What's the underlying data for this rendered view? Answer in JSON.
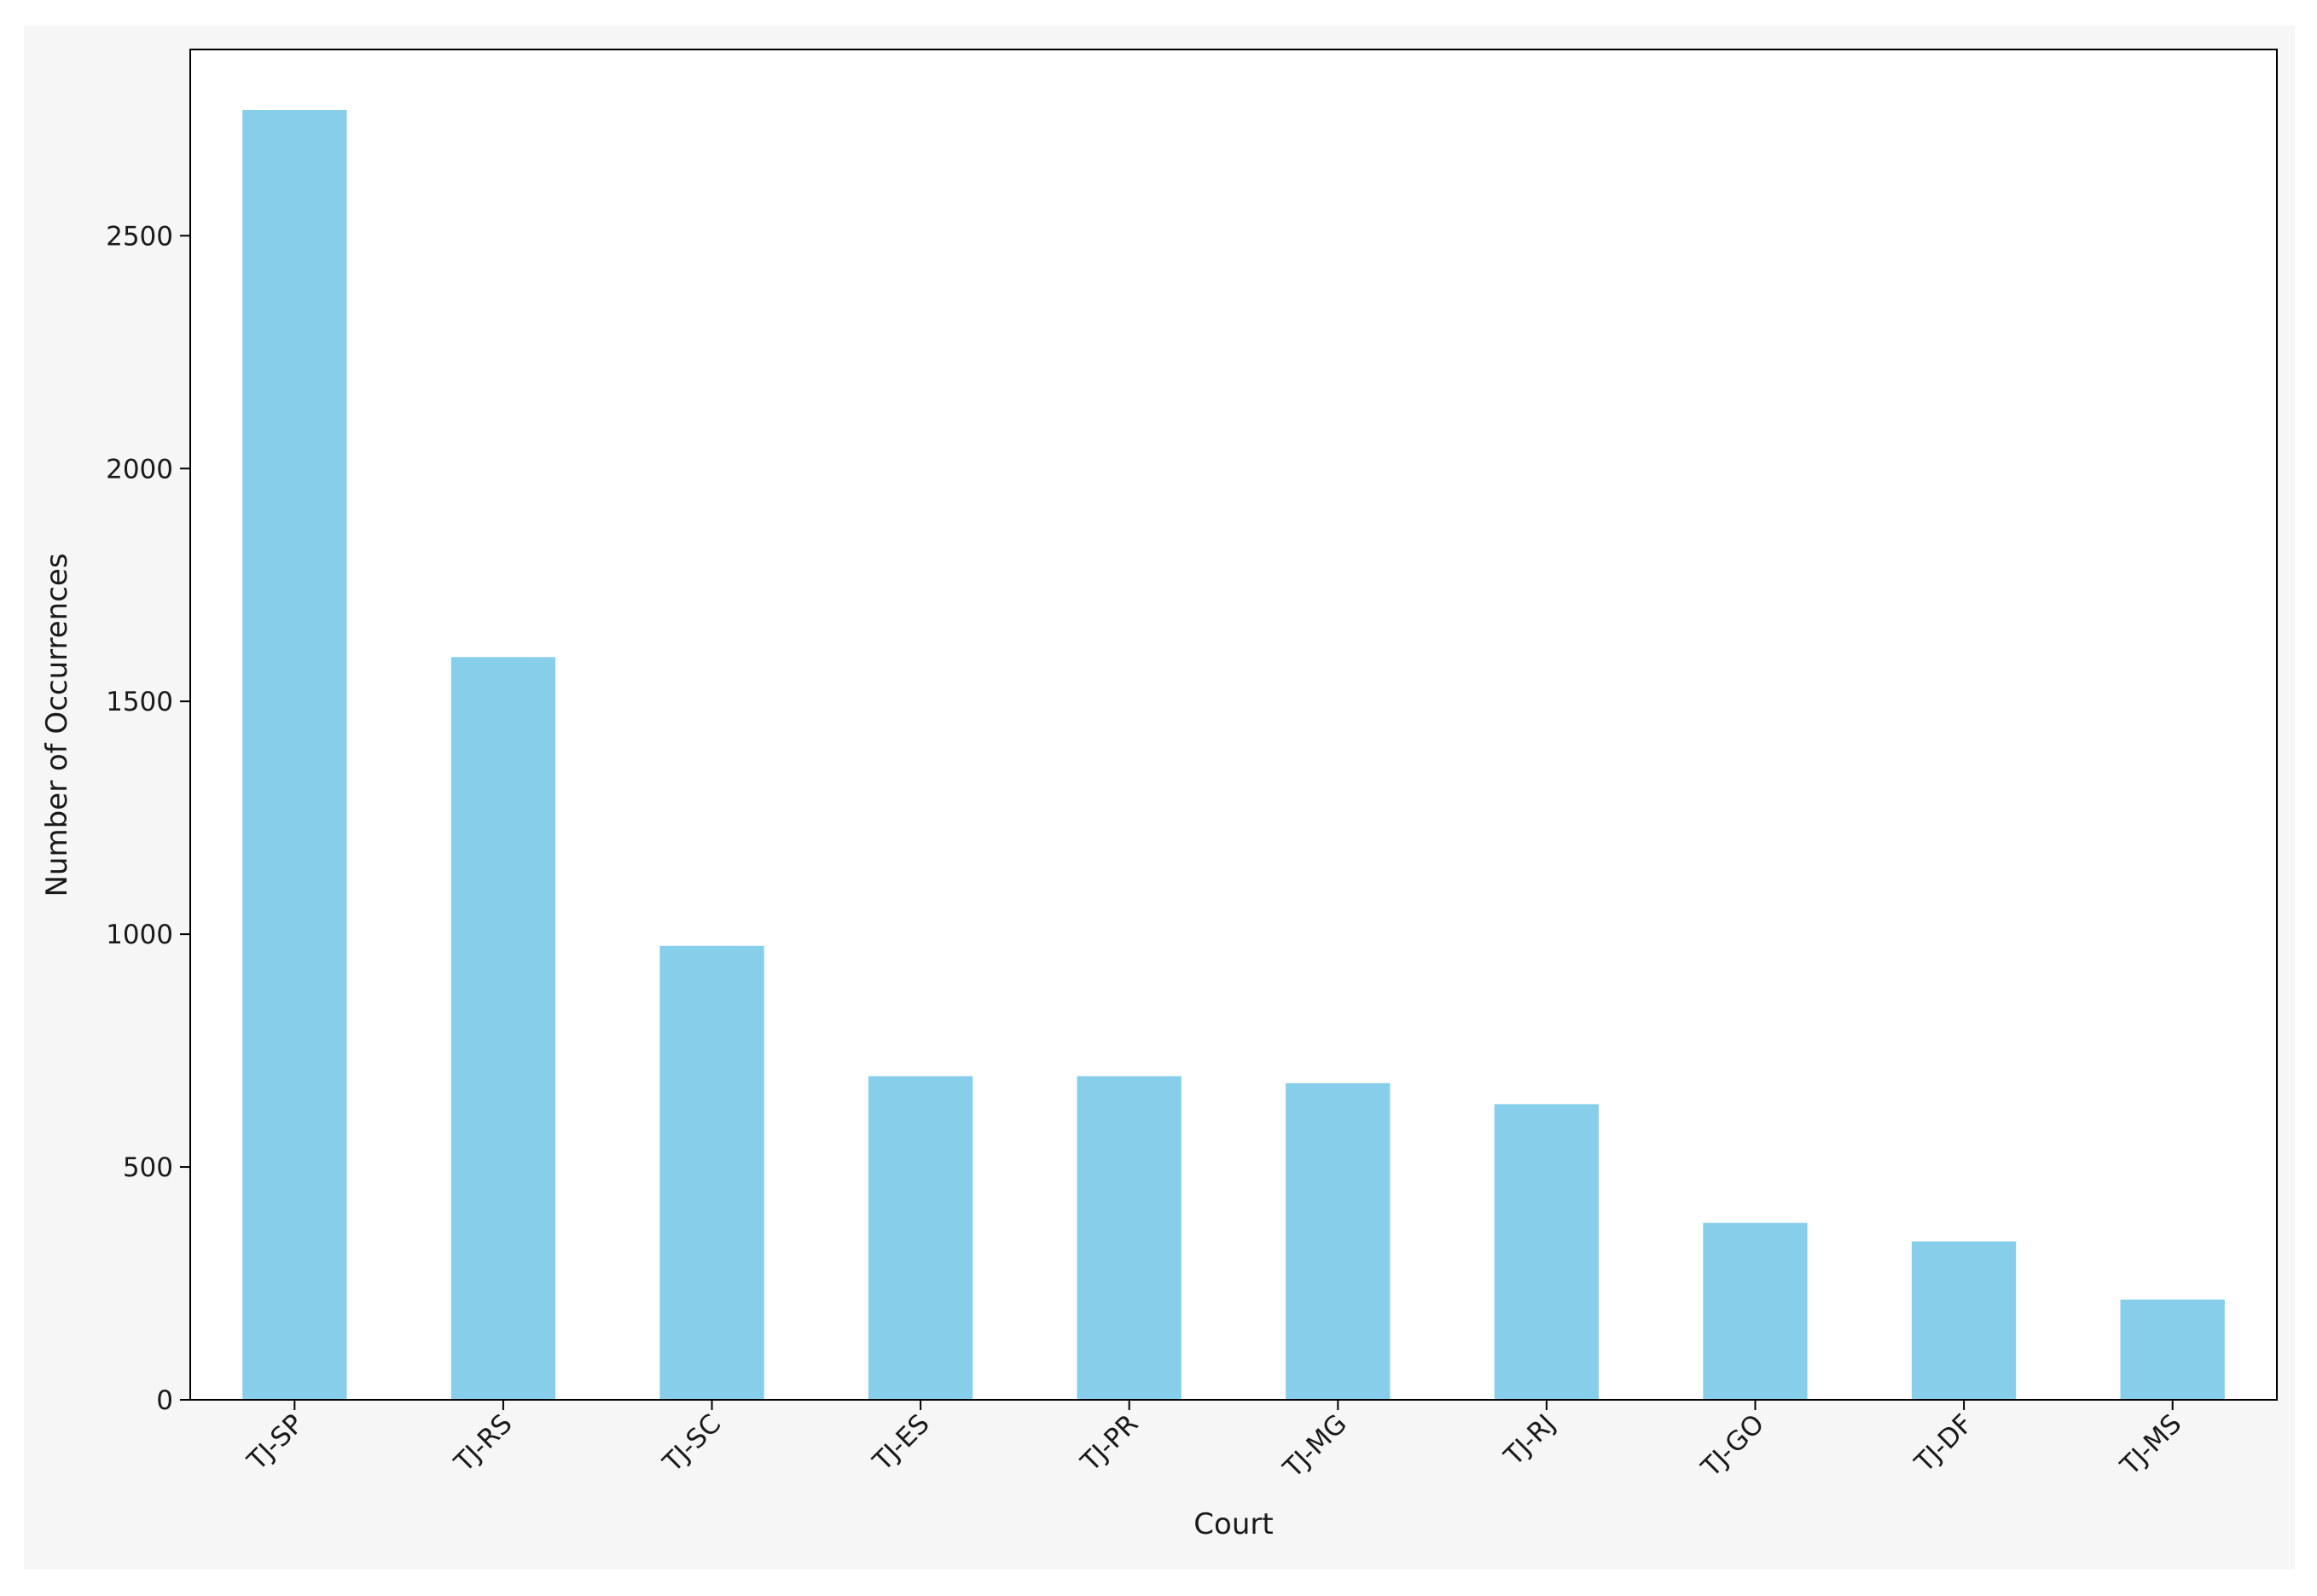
{
  "chart_data": {
    "type": "bar",
    "title": "",
    "xlabel": "Court",
    "ylabel": "Number of Occurrences",
    "categories": [
      "TJ-SP",
      "TJ-RS",
      "TJ-SC",
      "TJ-ES",
      "TJ-PR",
      "TJ-MG",
      "TJ-RJ",
      "TJ-GO",
      "TJ-DF",
      "TJ-MS"
    ],
    "values": [
      2770,
      1595,
      975,
      695,
      695,
      680,
      635,
      380,
      340,
      215
    ],
    "ylim": [
      0,
      2900
    ],
    "yticks": [
      0,
      500,
      1000,
      1500,
      2000,
      2500
    ],
    "bar_color": "#87ceeb",
    "grid": false,
    "legend": "none"
  }
}
